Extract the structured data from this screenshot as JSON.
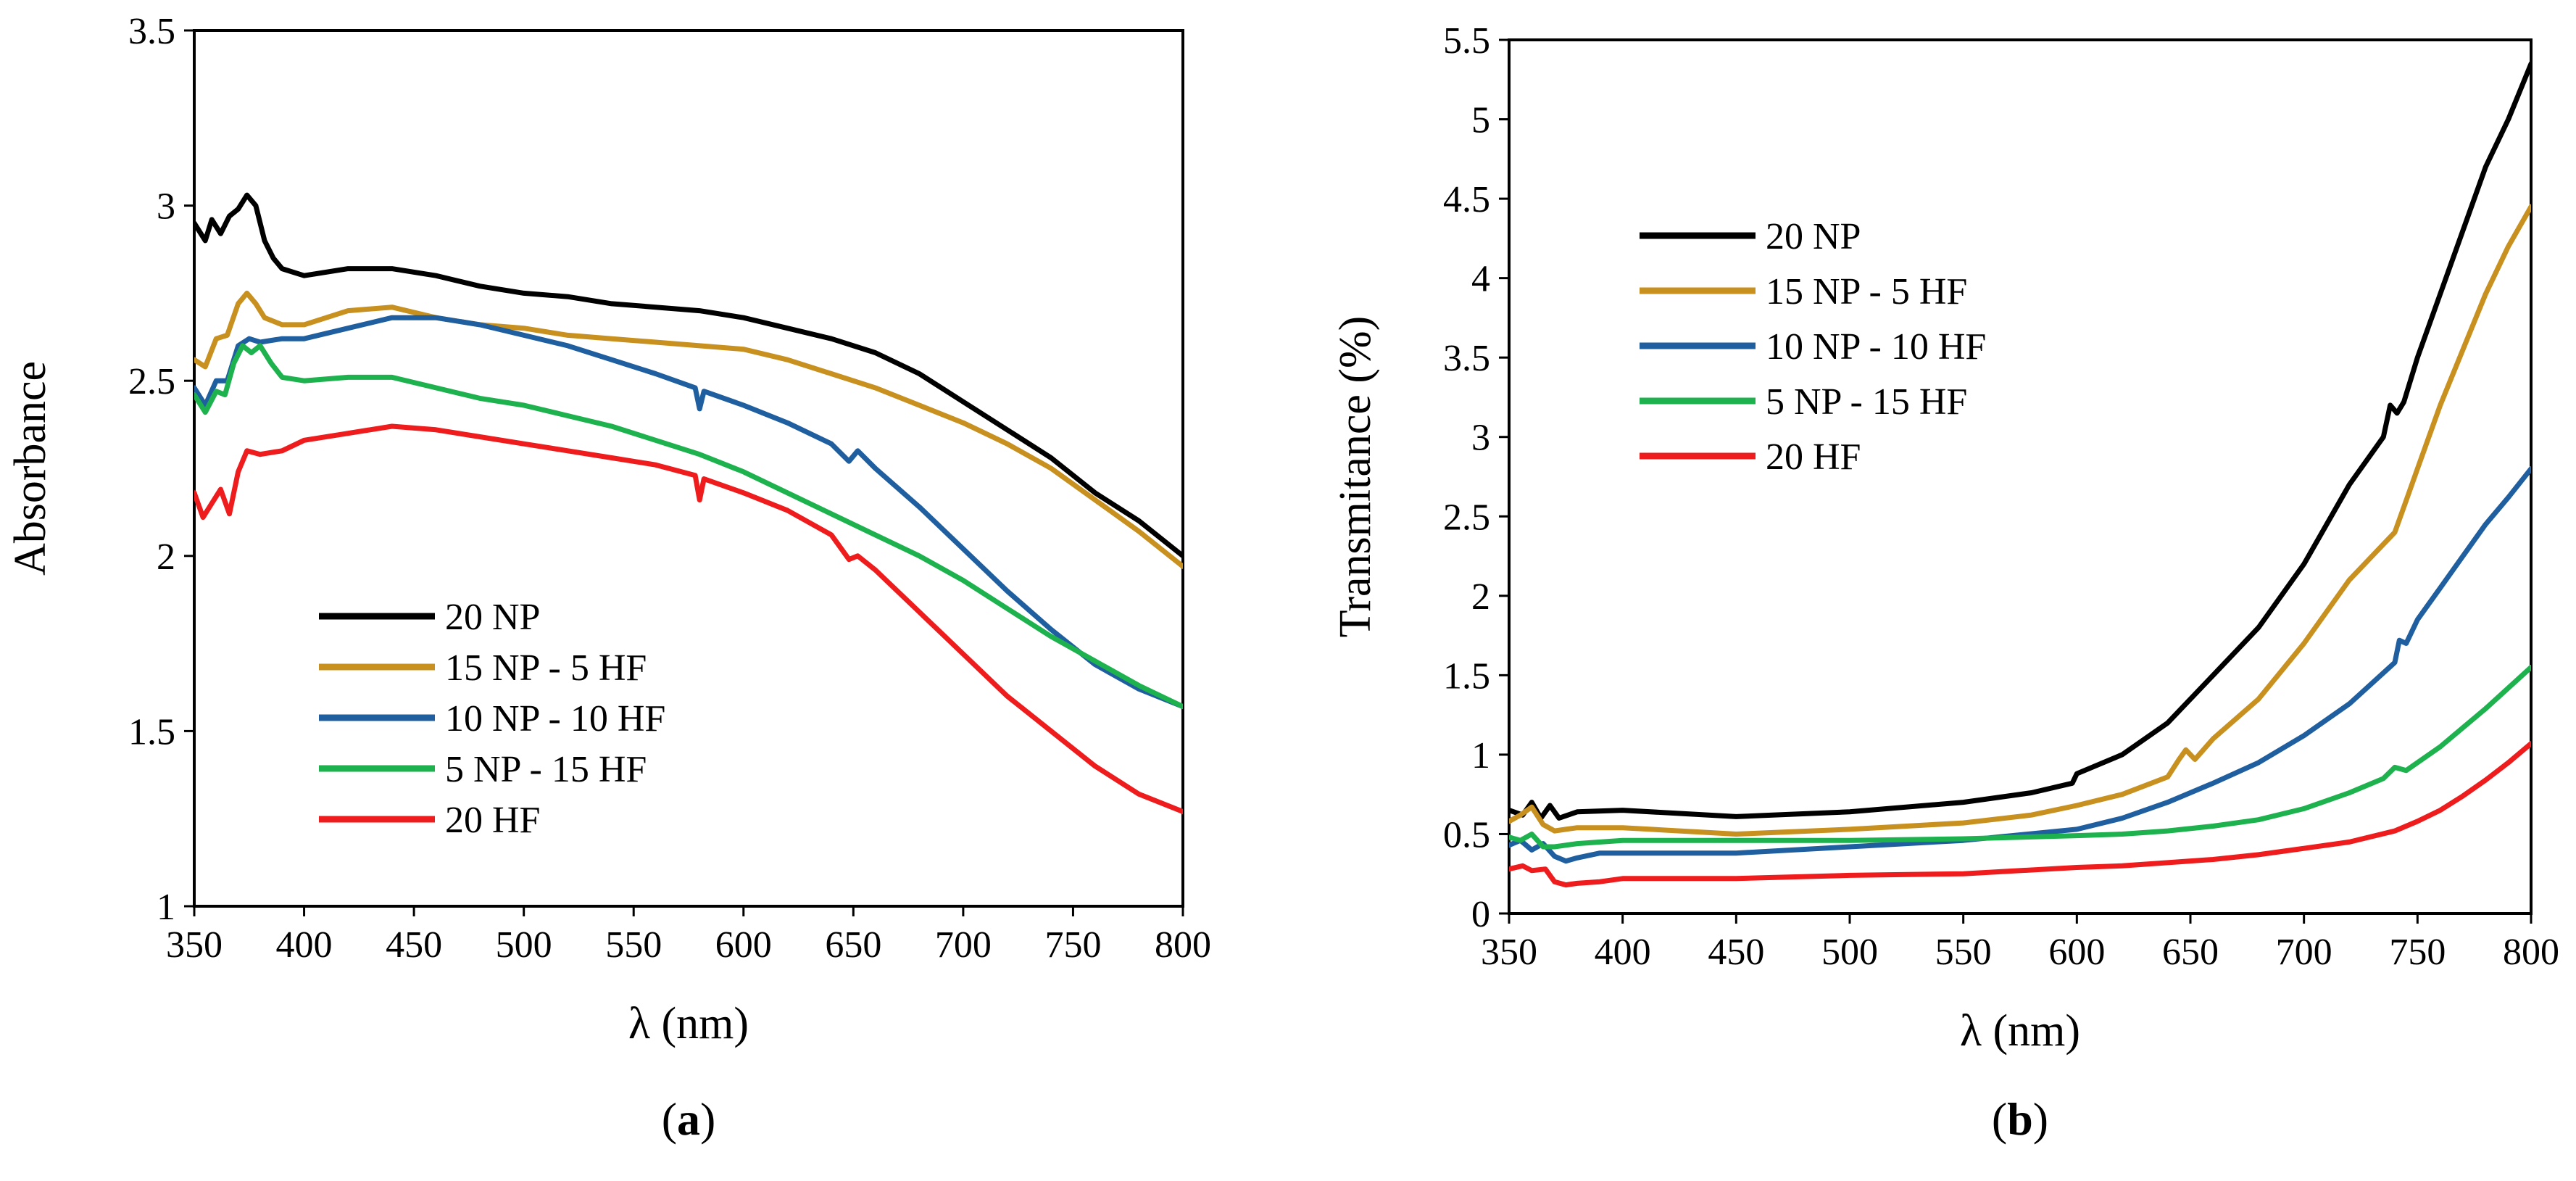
{
  "chart_data": [
    {
      "id": "a",
      "type": "line",
      "panel_label": {
        "open": "(",
        "letter": "a",
        "close": ")"
      },
      "xlabel": "λ (nm)",
      "ylabel": "Absorbance",
      "xlim": [
        350,
        800
      ],
      "ylim": [
        1,
        3.5
      ],
      "xticks": [
        350,
        400,
        450,
        500,
        550,
        600,
        650,
        700,
        750,
        800
      ],
      "yticks": [
        1,
        1.5,
        2,
        2.5,
        3,
        3.5
      ],
      "legend_position": "bottom-left",
      "series": [
        {
          "name": "20 NP",
          "color": "#000000",
          "x": [
            350,
            355,
            358,
            362,
            366,
            370,
            374,
            378,
            382,
            386,
            390,
            400,
            420,
            440,
            460,
            480,
            500,
            520,
            540,
            560,
            580,
            600,
            620,
            640,
            660,
            680,
            700,
            720,
            740,
            760,
            780,
            800
          ],
          "y": [
            2.95,
            2.9,
            2.96,
            2.92,
            2.97,
            2.99,
            3.03,
            3.0,
            2.9,
            2.85,
            2.82,
            2.8,
            2.82,
            2.82,
            2.8,
            2.77,
            2.75,
            2.74,
            2.72,
            2.71,
            2.7,
            2.68,
            2.65,
            2.62,
            2.58,
            2.52,
            2.44,
            2.36,
            2.28,
            2.18,
            2.1,
            2.0
          ]
        },
        {
          "name": "15 NP - 5 HF",
          "color": "#C8901E",
          "x": [
            350,
            355,
            360,
            365,
            370,
            374,
            378,
            382,
            390,
            400,
            420,
            440,
            460,
            480,
            500,
            520,
            540,
            560,
            580,
            600,
            620,
            640,
            660,
            680,
            700,
            720,
            740,
            760,
            780,
            800
          ],
          "y": [
            2.56,
            2.54,
            2.62,
            2.63,
            2.72,
            2.75,
            2.72,
            2.68,
            2.66,
            2.66,
            2.7,
            2.71,
            2.68,
            2.66,
            2.65,
            2.63,
            2.62,
            2.61,
            2.6,
            2.59,
            2.56,
            2.52,
            2.48,
            2.43,
            2.38,
            2.32,
            2.25,
            2.16,
            2.07,
            1.97
          ]
        },
        {
          "name": "10 NP - 10 HF",
          "color": "#1F5FA0",
          "x": [
            350,
            355,
            360,
            365,
            370,
            375,
            380,
            390,
            400,
            420,
            440,
            460,
            480,
            500,
            520,
            540,
            560,
            578,
            580,
            582,
            600,
            620,
            640,
            648,
            652,
            660,
            680,
            700,
            720,
            740,
            760,
            780,
            800
          ],
          "y": [
            2.48,
            2.43,
            2.5,
            2.5,
            2.6,
            2.62,
            2.61,
            2.62,
            2.62,
            2.65,
            2.68,
            2.68,
            2.66,
            2.63,
            2.6,
            2.56,
            2.52,
            2.48,
            2.42,
            2.47,
            2.43,
            2.38,
            2.32,
            2.27,
            2.3,
            2.25,
            2.14,
            2.02,
            1.9,
            1.79,
            1.69,
            1.62,
            1.57
          ]
        },
        {
          "name": "5 NP - 15 HF",
          "color": "#1DB24E",
          "x": [
            350,
            355,
            360,
            364,
            368,
            372,
            376,
            380,
            385,
            390,
            400,
            420,
            440,
            460,
            480,
            500,
            520,
            540,
            560,
            580,
            600,
            620,
            640,
            660,
            680,
            700,
            720,
            740,
            760,
            780,
            800
          ],
          "y": [
            2.46,
            2.41,
            2.47,
            2.46,
            2.55,
            2.6,
            2.58,
            2.6,
            2.55,
            2.51,
            2.5,
            2.51,
            2.51,
            2.48,
            2.45,
            2.43,
            2.4,
            2.37,
            2.33,
            2.29,
            2.24,
            2.18,
            2.12,
            2.06,
            2.0,
            1.93,
            1.85,
            1.77,
            1.7,
            1.63,
            1.57
          ]
        },
        {
          "name": "20 HF",
          "color": "#EE1C1C",
          "x": [
            350,
            354,
            358,
            362,
            366,
            370,
            374,
            380,
            390,
            400,
            420,
            440,
            460,
            480,
            500,
            520,
            540,
            560,
            578,
            580,
            582,
            600,
            620,
            640,
            648,
            652,
            660,
            680,
            700,
            720,
            740,
            760,
            780,
            800
          ],
          "y": [
            2.18,
            2.11,
            2.15,
            2.19,
            2.12,
            2.24,
            2.3,
            2.29,
            2.3,
            2.33,
            2.35,
            2.37,
            2.36,
            2.34,
            2.32,
            2.3,
            2.28,
            2.26,
            2.23,
            2.16,
            2.22,
            2.18,
            2.13,
            2.06,
            1.99,
            2.0,
            1.96,
            1.84,
            1.72,
            1.6,
            1.5,
            1.4,
            1.32,
            1.27
          ]
        }
      ]
    },
    {
      "id": "b",
      "type": "line",
      "panel_label": {
        "open": "(",
        "letter": "b",
        "close": ")"
      },
      "xlabel": "λ (nm)",
      "ylabel": "Transmitance (%)",
      "xlim": [
        350,
        800
      ],
      "ylim": [
        0,
        5.5
      ],
      "xticks": [
        350,
        400,
        450,
        500,
        550,
        600,
        650,
        700,
        750,
        800
      ],
      "yticks": [
        0,
        0.5,
        1,
        1.5,
        2,
        2.5,
        3,
        3.5,
        4,
        4.5,
        5,
        5.5
      ],
      "legend_position": "top-left",
      "series": [
        {
          "name": "20 NP",
          "color": "#000000",
          "x": [
            350,
            356,
            360,
            364,
            368,
            372,
            380,
            400,
            450,
            500,
            550,
            580,
            598,
            600,
            620,
            640,
            660,
            680,
            700,
            720,
            735,
            738,
            741,
            744,
            750,
            760,
            770,
            780,
            790,
            800
          ],
          "y": [
            0.65,
            0.62,
            0.7,
            0.6,
            0.68,
            0.6,
            0.64,
            0.65,
            0.61,
            0.64,
            0.7,
            0.76,
            0.82,
            0.88,
            1.0,
            1.2,
            1.5,
            1.8,
            2.2,
            2.7,
            3.0,
            3.2,
            3.15,
            3.22,
            3.5,
            3.9,
            4.3,
            4.7,
            5.0,
            5.35
          ]
        },
        {
          "name": "15 NP - 5 HF",
          "color": "#C8901E",
          "x": [
            350,
            355,
            360,
            365,
            370,
            380,
            400,
            450,
            500,
            550,
            580,
            600,
            620,
            640,
            645,
            648,
            652,
            660,
            680,
            700,
            720,
            740,
            745,
            750,
            760,
            770,
            780,
            790,
            800
          ],
          "y": [
            0.58,
            0.62,
            0.67,
            0.56,
            0.52,
            0.54,
            0.54,
            0.5,
            0.53,
            0.57,
            0.62,
            0.68,
            0.75,
            0.86,
            0.97,
            1.03,
            0.97,
            1.1,
            1.35,
            1.7,
            2.1,
            2.4,
            2.6,
            2.8,
            3.2,
            3.55,
            3.9,
            4.2,
            4.45
          ]
        },
        {
          "name": "10 NP - 10 HF",
          "color": "#1F5FA0",
          "x": [
            350,
            355,
            360,
            365,
            370,
            375,
            380,
            390,
            400,
            450,
            500,
            550,
            600,
            620,
            640,
            660,
            680,
            700,
            720,
            740,
            742,
            745,
            750,
            760,
            770,
            780,
            790,
            800
          ],
          "y": [
            0.43,
            0.46,
            0.4,
            0.44,
            0.36,
            0.33,
            0.35,
            0.38,
            0.38,
            0.38,
            0.42,
            0.46,
            0.53,
            0.6,
            0.7,
            0.82,
            0.95,
            1.12,
            1.32,
            1.58,
            1.72,
            1.7,
            1.85,
            2.05,
            2.25,
            2.45,
            2.62,
            2.8
          ]
        },
        {
          "name": "5 NP - 15 HF",
          "color": "#1DB24E",
          "x": [
            350,
            355,
            360,
            365,
            370,
            380,
            400,
            450,
            500,
            550,
            600,
            620,
            640,
            660,
            680,
            700,
            720,
            735,
            740,
            745,
            750,
            760,
            770,
            780,
            790,
            800
          ],
          "y": [
            0.48,
            0.46,
            0.5,
            0.42,
            0.42,
            0.44,
            0.46,
            0.46,
            0.46,
            0.47,
            0.49,
            0.5,
            0.52,
            0.55,
            0.59,
            0.66,
            0.76,
            0.85,
            0.92,
            0.9,
            0.95,
            1.05,
            1.17,
            1.29,
            1.42,
            1.55
          ]
        },
        {
          "name": "20 HF",
          "color": "#EE1C1C",
          "x": [
            350,
            356,
            360,
            366,
            370,
            375,
            380,
            390,
            400,
            450,
            500,
            550,
            600,
            620,
            640,
            660,
            680,
            700,
            720,
            740,
            750,
            760,
            770,
            780,
            790,
            800
          ],
          "y": [
            0.28,
            0.3,
            0.27,
            0.28,
            0.2,
            0.18,
            0.19,
            0.2,
            0.22,
            0.22,
            0.24,
            0.25,
            0.29,
            0.3,
            0.32,
            0.34,
            0.37,
            0.41,
            0.45,
            0.52,
            0.58,
            0.65,
            0.74,
            0.84,
            0.95,
            1.07
          ]
        }
      ]
    }
  ]
}
